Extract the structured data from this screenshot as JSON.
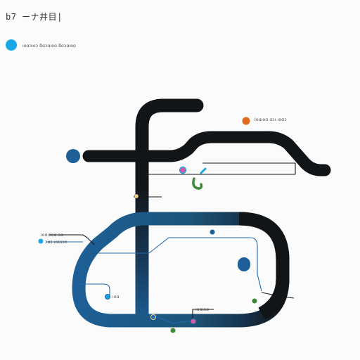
{
  "header": {
    "title": "b7 ーナ井目|",
    "subtitle": "ıoɑɔıoɔ ßɑɔɑıoɑ ßɑɔɑıoɑ"
  },
  "labels": {
    "top_right": "Ιoɑıoɑ ɑɔı ıoɑɔ",
    "left_upper": "ıoɑıɔoɑ ɔɑ",
    "left_lower": "ɔɑɔ ıoɑıɔo",
    "small_mid": "ıoɑ",
    "bottom_center": "ıoɑıoɑ"
  },
  "colors": {
    "primary_dark": "#121518",
    "primary_blue": "#1d5f96",
    "accent_cyan": "#19a8e6",
    "accent_orange": "#e06a1e",
    "accent_green": "#3f8a3a",
    "accent_pink": "#d35aa5",
    "thin_line_blue": "#1d6bb0",
    "background": "#fbfbfb"
  }
}
